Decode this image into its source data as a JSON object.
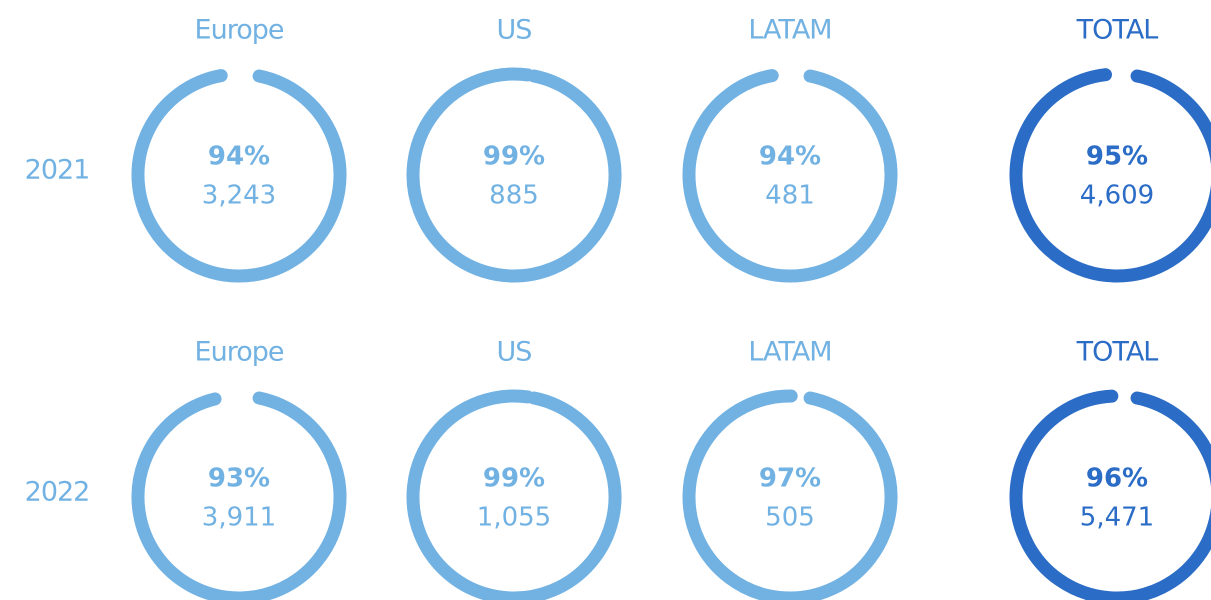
{
  "chart_data": [
    {
      "type": "donut",
      "title": "2021",
      "categories": [
        "Europe",
        "US",
        "LATAM",
        "TOTAL"
      ],
      "values": [
        94,
        99,
        94,
        95
      ],
      "value_labels": [
        "94%",
        "99%",
        "94%",
        "95%"
      ],
      "counts": [
        3243,
        885,
        481,
        4609
      ],
      "count_labels": [
        "3,243",
        "885",
        "481",
        "4,609"
      ],
      "colors": [
        "#72b2e3",
        "#72b2e3",
        "#72b2e3",
        "#2b6cc6"
      ]
    },
    {
      "type": "donut",
      "title": "2022",
      "categories": [
        "Europe",
        "US",
        "LATAM",
        "TOTAL"
      ],
      "values": [
        93,
        99,
        97,
        96
      ],
      "value_labels": [
        "93%",
        "99%",
        "97%",
        "96%"
      ],
      "counts": [
        3911,
        1055,
        505,
        5471
      ],
      "count_labels": [
        "3,911",
        "1,055",
        "505",
        "5,471"
      ],
      "colors": [
        "#72b2e3",
        "#72b2e3",
        "#72b2e3",
        "#2b6cc6"
      ]
    }
  ]
}
